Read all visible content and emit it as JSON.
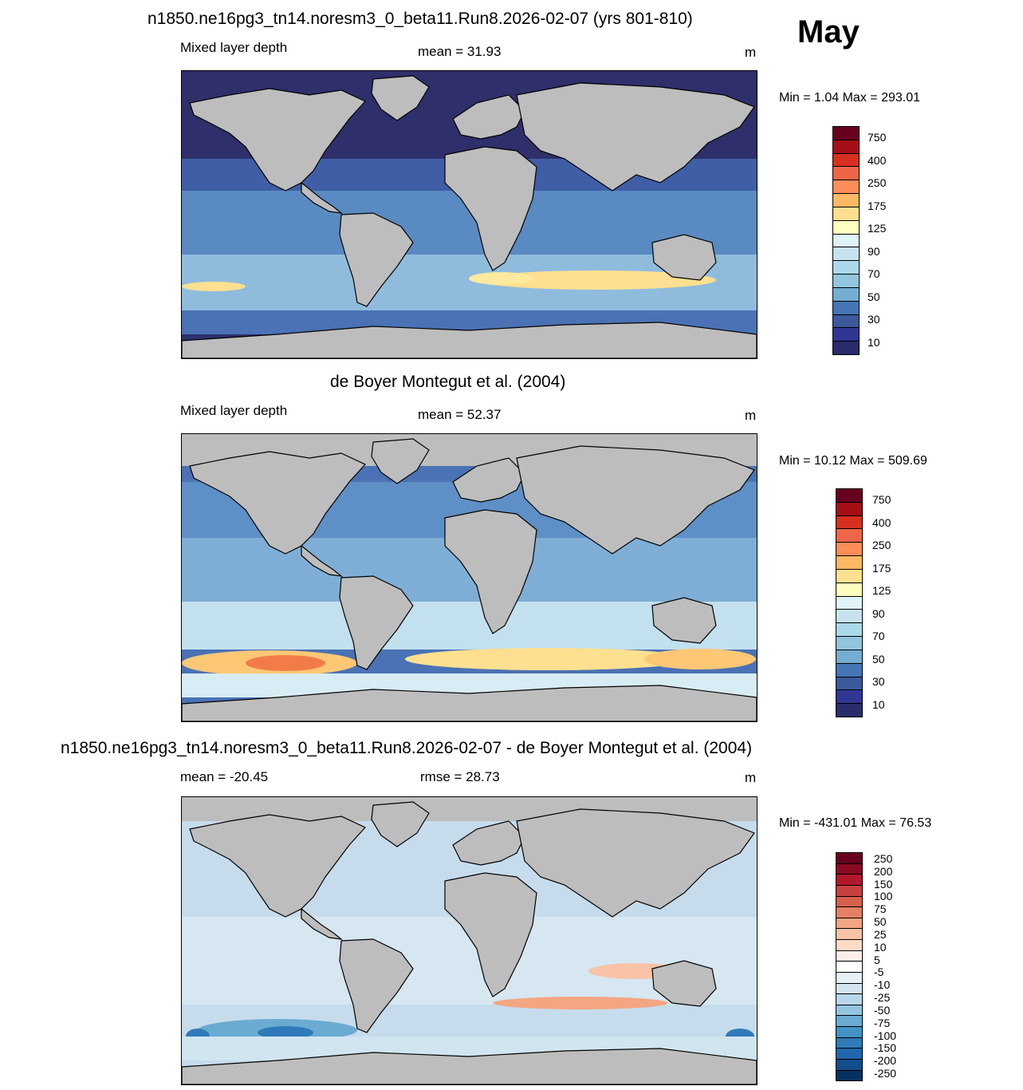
{
  "month": "May",
  "panels": [
    {
      "id": "model",
      "title": "n1850.ne16pg3_tn14.noresm3_0_beta11.Run8.2026-02-07 (yrs 801-810)",
      "left_label": "Mixed layer depth",
      "center_label": "mean =  31.93",
      "units": "m",
      "minmax": "Min =   1.04 Max = 293.01",
      "colorbar": {
        "labels": [
          "750",
          "400",
          "250",
          "175",
          "125",
          "90",
          "70",
          "50",
          "30",
          "10"
        ],
        "colors": [
          "#67001f",
          "#a50f15",
          "#d7301f",
          "#ef6548",
          "#fc8d59",
          "#fdb863",
          "#fee090",
          "#ffffbf",
          "#e0f3f8",
          "#c6e3ef",
          "#abd9e9",
          "#92c5de",
          "#74add1",
          "#4575b4",
          "#3a5a9b",
          "#313695",
          "#2a2d6b"
        ]
      }
    },
    {
      "id": "obs",
      "title": "de Boyer Montegut et al. (2004)",
      "left_label": "Mixed layer depth",
      "center_label": "mean =  52.37",
      "units": "m",
      "minmax": "Min =  10.12 Max = 509.69",
      "colorbar": {
        "labels": [
          "750",
          "400",
          "250",
          "175",
          "125",
          "90",
          "70",
          "50",
          "30",
          "10"
        ],
        "colors": [
          "#67001f",
          "#a50f15",
          "#d7301f",
          "#ef6548",
          "#fc8d59",
          "#fdb863",
          "#fee090",
          "#ffffbf",
          "#e0f3f8",
          "#c6e3ef",
          "#abd9e9",
          "#92c5de",
          "#74add1",
          "#4575b4",
          "#3a5a9b",
          "#313695",
          "#2a2d6b"
        ]
      }
    },
    {
      "id": "diff",
      "title": "n1850.ne16pg3_tn14.noresm3_0_beta11.Run8.2026-02-07 - de Boyer Montegut et al. (2004)",
      "left_label": "mean = -20.45",
      "center_label": "rmse =  28.73",
      "units": "m",
      "minmax": "Min = -431.01 Max =  76.53",
      "colorbar": {
        "labels": [
          "250",
          "200",
          "150",
          "100",
          "75",
          "50",
          "25",
          "10",
          "5",
          "-5",
          "-10",
          "-25",
          "-50",
          "-75",
          "-100",
          "-150",
          "-200",
          "-250"
        ],
        "colors": [
          "#67001f",
          "#8b0a24",
          "#b2182b",
          "#c9413f",
          "#d6604d",
          "#e48066",
          "#f4a582",
          "#f8c3a6",
          "#fddbc7",
          "#fbeee6",
          "#ffffff",
          "#e6f0f7",
          "#d1e5f0",
          "#b8d7ea",
          "#92c5de",
          "#6aabd1",
          "#4393c3",
          "#2f7ab8",
          "#2166ac",
          "#124d8c",
          "#053061"
        ]
      }
    }
  ],
  "colors": {
    "land": "#bdbdbd",
    "coast": "#000000",
    "model_ocean": "#2e2f6b",
    "obs_ocean": "#4a72b4",
    "diff_ocean": "#c6dcec"
  }
}
